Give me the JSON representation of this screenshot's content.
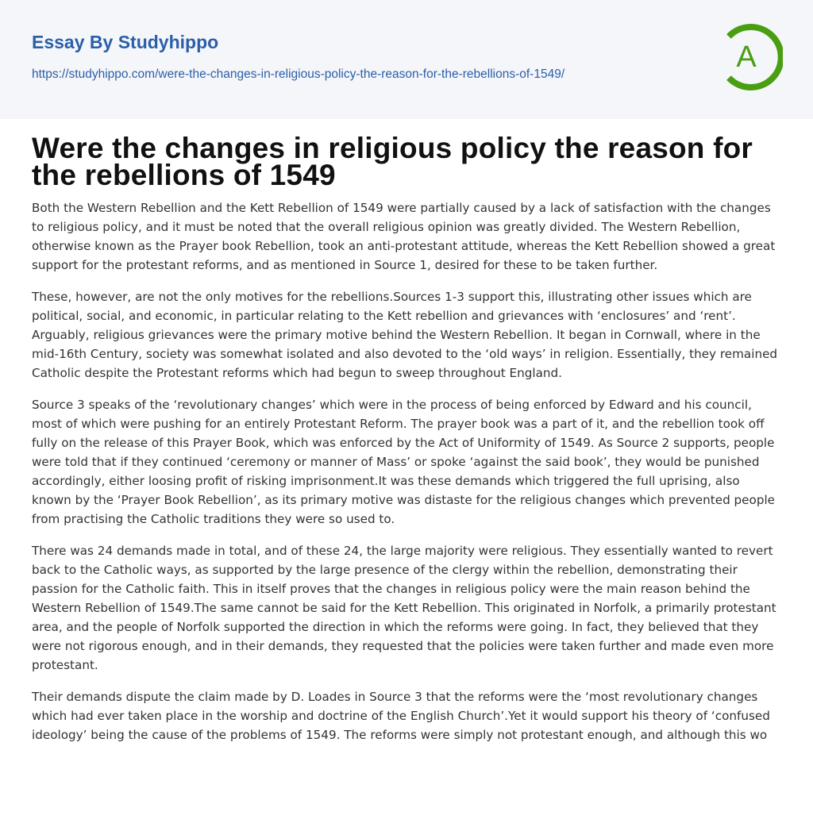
{
  "header": {
    "brand": "Essay By Studyhippo",
    "url": "https://studyhippo.com/were-the-changes-in-religious-policy-the-reason-for-the-rebellions-of-1549/",
    "logo_letter": "A",
    "logo_color": "#4a9e12",
    "brand_color": "#2a5fa8"
  },
  "article": {
    "title": "Were the changes in religious policy the reason for the rebellions of 1549",
    "paragraphs": [
      "Both the Western Rebellion and the Kett Rebellion of 1549 were partially caused by a lack of satisfaction with the changes to religious policy, and it must be noted that the overall religious opinion was greatly divided. The Western Rebellion, otherwise known as the Prayer book Rebellion, took an anti-protestant attitude, whereas the Kett Rebellion showed a great support for the protestant reforms, and as mentioned in Source 1, desired for these to be taken further.",
      "These, however, are not the only motives for the rebellions.Sources 1-3 support this, illustrating other issues which are political, social, and economic, in particular relating to the Kett rebellion and grievances with ‘enclosures’ and ‘rent’. Arguably, religious grievances were the primary motive behind the Western Rebellion. It began in Cornwall, where in the mid-16th Century, society was somewhat isolated and also devoted to the ‘old ways’ in religion. Essentially, they remained Catholic despite the Protestant reforms which had begun to sweep throughout England.",
      "Source 3 speaks of the ‘revolutionary changes’ which were in the process of being enforced by Edward and his council, most of which were pushing for an entirely Protestant Reform. The prayer book was a part of it, and the rebellion took off fully on the release of this Prayer Book, which was enforced by the Act of Uniformity of 1549. As Source 2 supports, people were told that if they continued ‘ceremony or manner of Mass’ or spoke ‘against the said book’, they would be punished accordingly, either loosing profit of risking imprisonment.It was these demands which triggered the full uprising, also known by the ‘Prayer Book Rebellion’, as its primary motive was distaste for the religious changes which prevented people from practising the Catholic traditions they were so used to.",
      "There was 24 demands made in total, and of these 24, the large majority were religious. They essentially wanted to revert back to the Catholic ways, as supported by the large presence of the clergy within the rebellion, demonstrating their passion for the Catholic faith. This in itself proves that the changes in religious policy were the main reason behind the Western Rebellion of 1549.The same cannot be said for the Kett Rebellion. This originated in Norfolk, a primarily protestant area, and the people of Norfolk supported the direction in which the reforms were going. In fact, they believed that they were not rigorous enough, and in their demands, they requested that the policies were taken further and made even more protestant.",
      "Their demands dispute the claim made by D. Loades in Source 3 that the reforms were the ‘most revolutionary changes which had ever taken place in the worship and doctrine of the English Church’.Yet it would support his theory of ‘confused ideology’ being the cause of the problems of 1549. The reforms were simply not protestant enough, and although this wo"
    ]
  }
}
